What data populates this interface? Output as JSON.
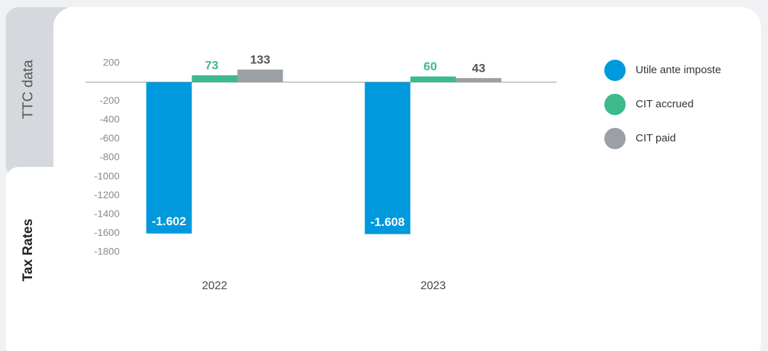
{
  "tabs": [
    "TTC data",
    "Tax Rates"
  ],
  "chart_data": {
    "type": "bar",
    "categories": [
      "2022",
      "2023"
    ],
    "series": [
      {
        "name": "Utile ante imposte",
        "color": "#0099dd",
        "values": [
          -1602,
          -1608
        ],
        "value_labels": [
          "-1.602",
          "-1.608"
        ]
      },
      {
        "name": "CIT accrued",
        "color": "#3dba8c",
        "values": [
          73,
          60
        ]
      },
      {
        "name": "CIT paid",
        "color": "#9aa0a6",
        "values": [
          133,
          43
        ]
      }
    ],
    "ylim": [
      -1800,
      200
    ],
    "yticks": [
      200,
      -200,
      -400,
      -600,
      -800,
      -1000,
      -1200,
      -1400,
      -1600,
      -1800
    ],
    "legend": "right"
  }
}
